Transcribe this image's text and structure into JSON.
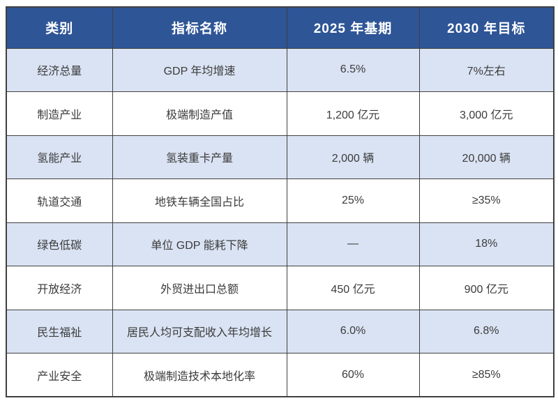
{
  "chart_data": {
    "type": "table",
    "columns": [
      "类别",
      "指标名称",
      "2025 年基期",
      "2030 年目标"
    ],
    "rows": [
      [
        "经济总量",
        "GDP 年均增速",
        "6.5%",
        "7%左右"
      ],
      [
        "制造产业",
        "极端制造产值",
        "1,200 亿元",
        "3,000 亿元"
      ],
      [
        "氢能产业",
        "氢装重卡产量",
        "2,000 辆",
        "20,000 辆"
      ],
      [
        "轨道交通",
        "地铁车辆全国占比",
        "25%",
        "≥35%"
      ],
      [
        "绿色低碳",
        "单位 GDP 能耗下降",
        "—",
        "18%"
      ],
      [
        "开放经济",
        "外贸进出口总额",
        "450 亿元",
        "900 亿元"
      ],
      [
        "民生福祉",
        "居民人均可支配收入年均增长",
        "6.0%",
        "6.8%"
      ],
      [
        "产业安全",
        "极端制造技术本地化率",
        "60%",
        "≥85%"
      ]
    ],
    "layout": {
      "header_position": "top",
      "grid": true,
      "zebra_striping": "odd-rows-light-blue"
    }
  },
  "theme": {
    "header_bg": "#2E5596",
    "header_text": "#FFFFFF",
    "row_alt_bg": "#DAE3F3",
    "row_bg": "#FFFFFF",
    "border": "#404040",
    "body_text": "#3B3B3B"
  }
}
